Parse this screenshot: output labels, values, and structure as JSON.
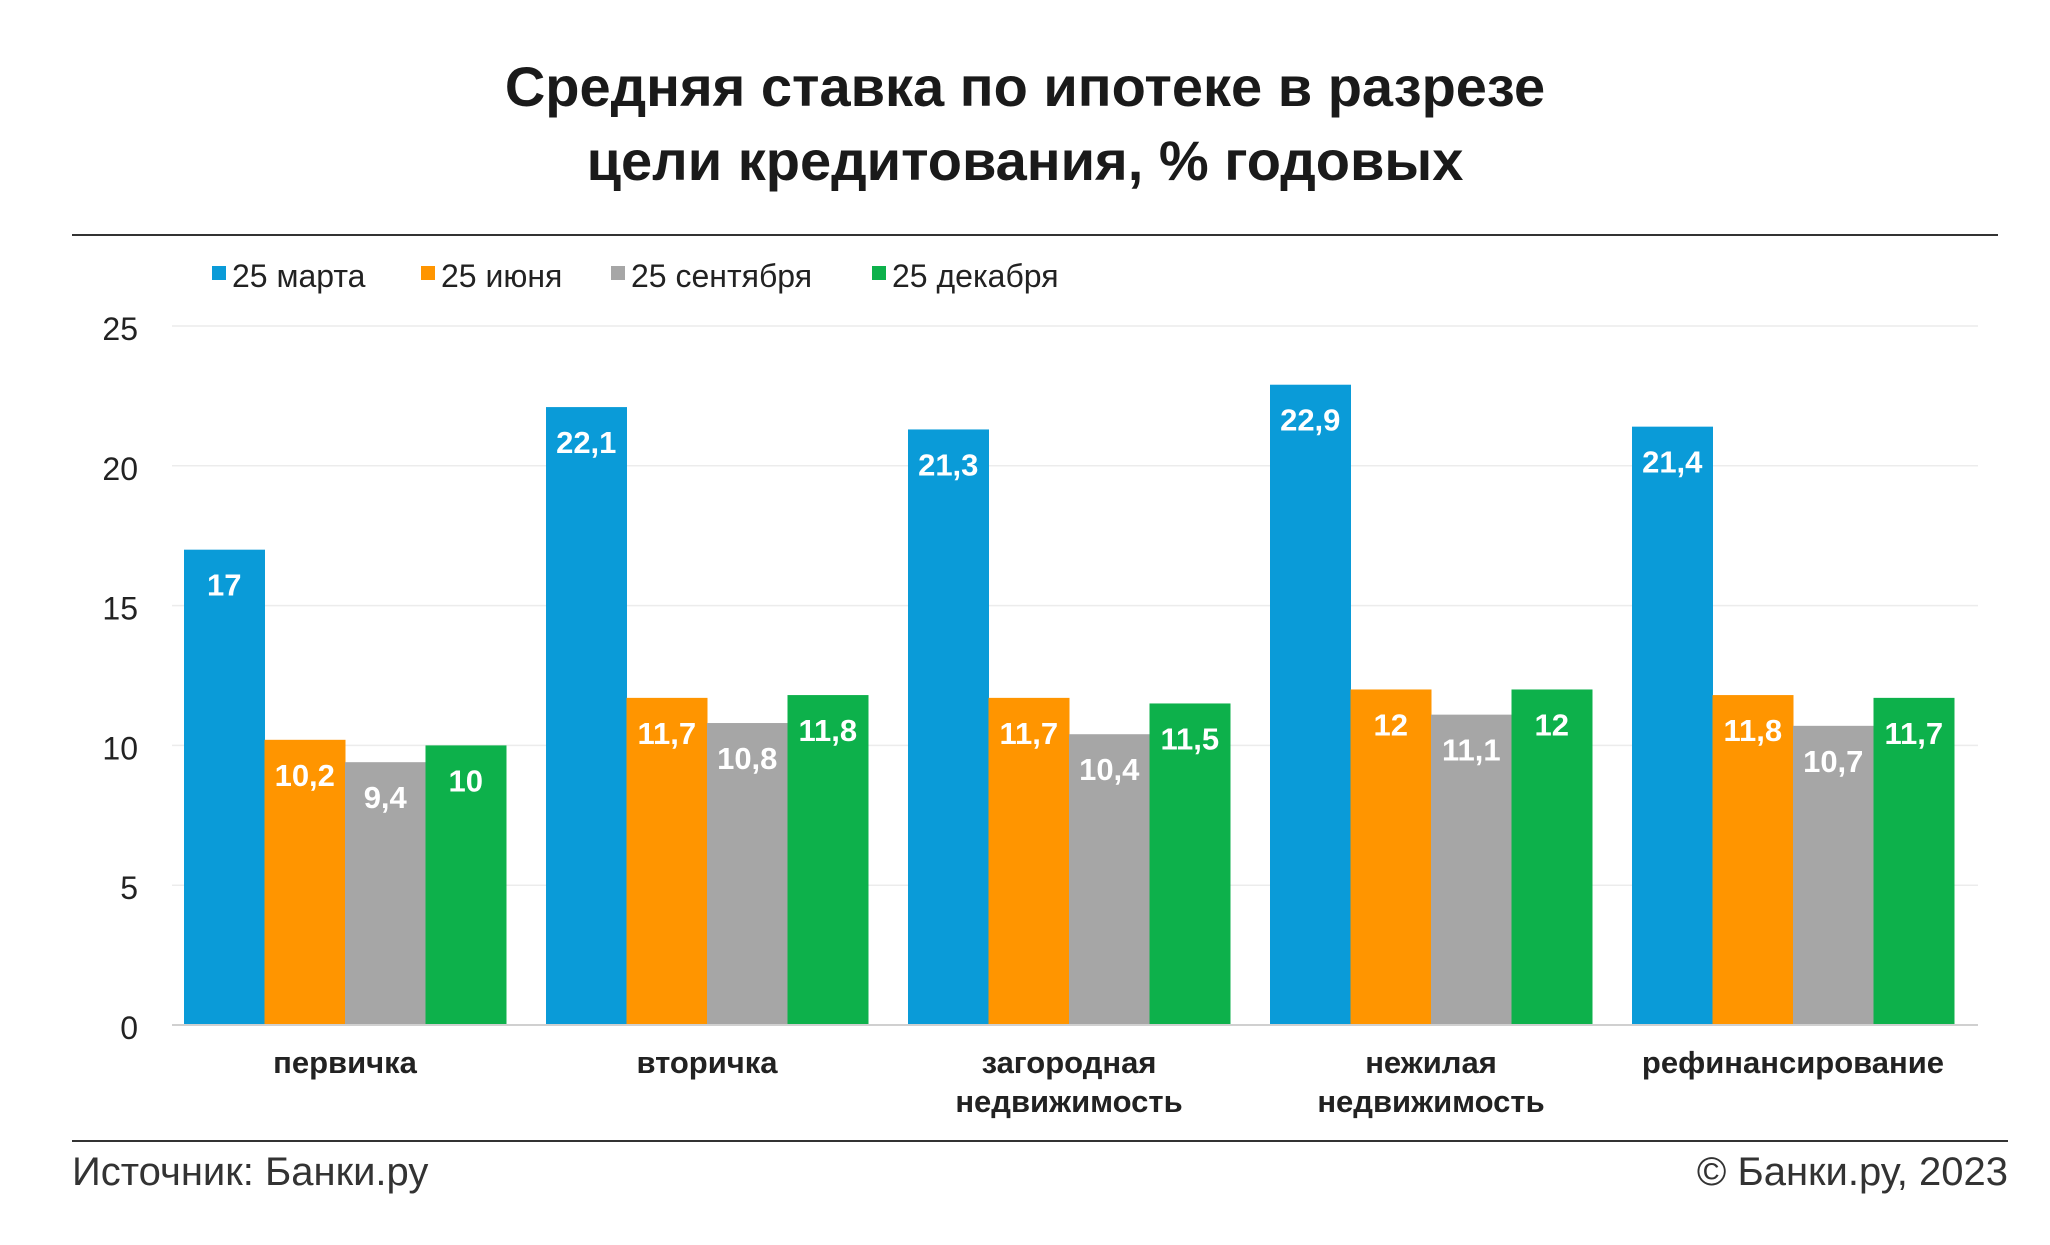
{
  "title_line1": "Средняя ставка по ипотеке в разрезе",
  "title_line2": "цели кредитования, % годовых",
  "source": "Источник: Банки.ру",
  "copyright": "© Банки.ру, 2023",
  "colors": {
    "march": "#0a9bd8",
    "june": "#ff9500",
    "september": "#a6a6a6",
    "december": "#0db14b",
    "grid": "#ececec",
    "axis": "#d0d0d0"
  },
  "chart_data": {
    "type": "bar",
    "title": "Средняя ставка по ипотеке в разрезе цели кредитования, % годовых",
    "categories": [
      [
        "первичка"
      ],
      [
        "вторичка"
      ],
      [
        "загородная",
        "недвижимость"
      ],
      [
        "нежилая",
        "недвижимость"
      ],
      [
        "рефинансирование"
      ]
    ],
    "series": [
      {
        "name": "25 марта",
        "color": "#0a9bd8",
        "values": [
          17,
          22.1,
          21.3,
          22.9,
          21.4
        ],
        "labels": [
          "17",
          "22,1",
          "21,3",
          "22,9",
          "21,4"
        ]
      },
      {
        "name": "25 июня",
        "color": "#ff9500",
        "values": [
          10.2,
          11.7,
          11.7,
          12,
          11.8
        ],
        "labels": [
          "10,2",
          "11,7",
          "11,7",
          "12",
          "11,8"
        ]
      },
      {
        "name": "25 сентября",
        "color": "#a6a6a6",
        "values": [
          9.4,
          10.8,
          10.4,
          11.1,
          10.7
        ],
        "labels": [
          "9,4",
          "10,8",
          "10,4",
          "11,1",
          "10,7"
        ]
      },
      {
        "name": "25 декабря",
        "color": "#0db14b",
        "values": [
          10,
          11.8,
          11.5,
          12,
          11.7
        ],
        "labels": [
          "10",
          "11,8",
          "11,5",
          "12",
          "11,7"
        ]
      }
    ],
    "yticks": [
      0,
      5,
      10,
      15,
      20,
      25
    ],
    "ylim": [
      0,
      25
    ],
    "grid": true,
    "legend": "top-left"
  }
}
